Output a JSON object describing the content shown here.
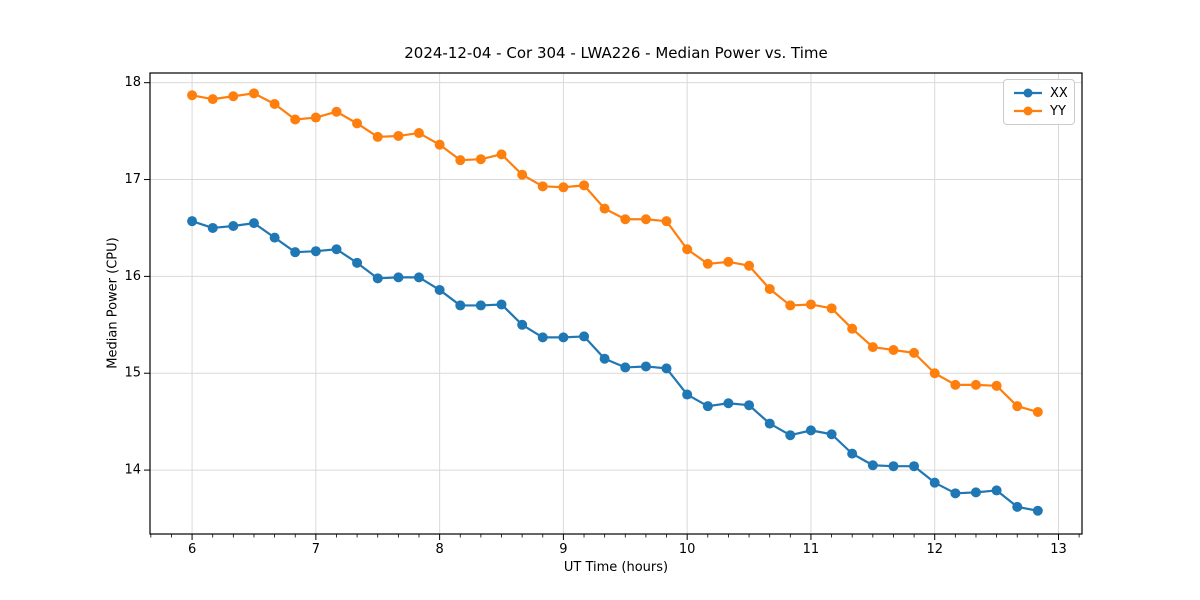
{
  "chart_data": {
    "type": "line",
    "title": "2024-12-04 - Cor 304 - LWA226 - Median Power vs. Time",
    "xlabel": "UT Time (hours)",
    "ylabel": "Median Power (CPU)",
    "xlim": [
      5.66,
      13.19
    ],
    "ylim": [
      13.34,
      18.1
    ],
    "x_ticks": [
      6,
      7,
      8,
      9,
      10,
      11,
      12,
      13
    ],
    "y_ticks": [
      14,
      15,
      16,
      17,
      18
    ],
    "x_minor_ticks_per_hour": 6,
    "grid": true,
    "grid_color": "#d9d9d9",
    "legend_position": "upper right",
    "marker": "circle",
    "x": [
      6.0,
      6.167,
      6.333,
      6.5,
      6.667,
      6.833,
      7.0,
      7.167,
      7.333,
      7.5,
      7.667,
      7.833,
      8.0,
      8.167,
      8.333,
      8.5,
      8.667,
      8.833,
      9.0,
      9.167,
      9.333,
      9.5,
      9.667,
      9.833,
      10.0,
      10.167,
      10.333,
      10.5,
      10.667,
      10.833,
      11.0,
      11.167,
      11.333,
      11.5,
      11.667,
      11.833,
      12.0,
      12.167,
      12.333,
      12.5,
      12.667,
      12.833
    ],
    "series": [
      {
        "name": "XX",
        "color": "#1f77b4",
        "values": [
          16.57,
          16.5,
          16.52,
          16.55,
          16.4,
          16.25,
          16.26,
          16.28,
          16.14,
          15.98,
          15.99,
          15.99,
          15.86,
          15.7,
          15.7,
          15.71,
          15.5,
          15.37,
          15.37,
          15.38,
          15.15,
          15.06,
          15.07,
          15.05,
          14.78,
          14.66,
          14.69,
          14.67,
          14.48,
          14.36,
          14.41,
          14.37,
          14.17,
          14.05,
          14.04,
          14.04,
          13.87,
          13.76,
          13.77,
          13.79,
          13.62,
          13.58
        ]
      },
      {
        "name": "YY",
        "color": "#ff7f0e",
        "values": [
          17.87,
          17.83,
          17.86,
          17.89,
          17.78,
          17.62,
          17.64,
          17.7,
          17.58,
          17.44,
          17.45,
          17.48,
          17.36,
          17.2,
          17.21,
          17.26,
          17.05,
          16.93,
          16.92,
          16.94,
          16.7,
          16.59,
          16.59,
          16.57,
          16.28,
          16.13,
          16.15,
          16.11,
          15.87,
          15.7,
          15.71,
          15.67,
          15.46,
          15.27,
          15.24,
          15.21,
          15.0,
          14.88,
          14.88,
          14.87,
          14.66,
          14.6
        ]
      }
    ]
  }
}
